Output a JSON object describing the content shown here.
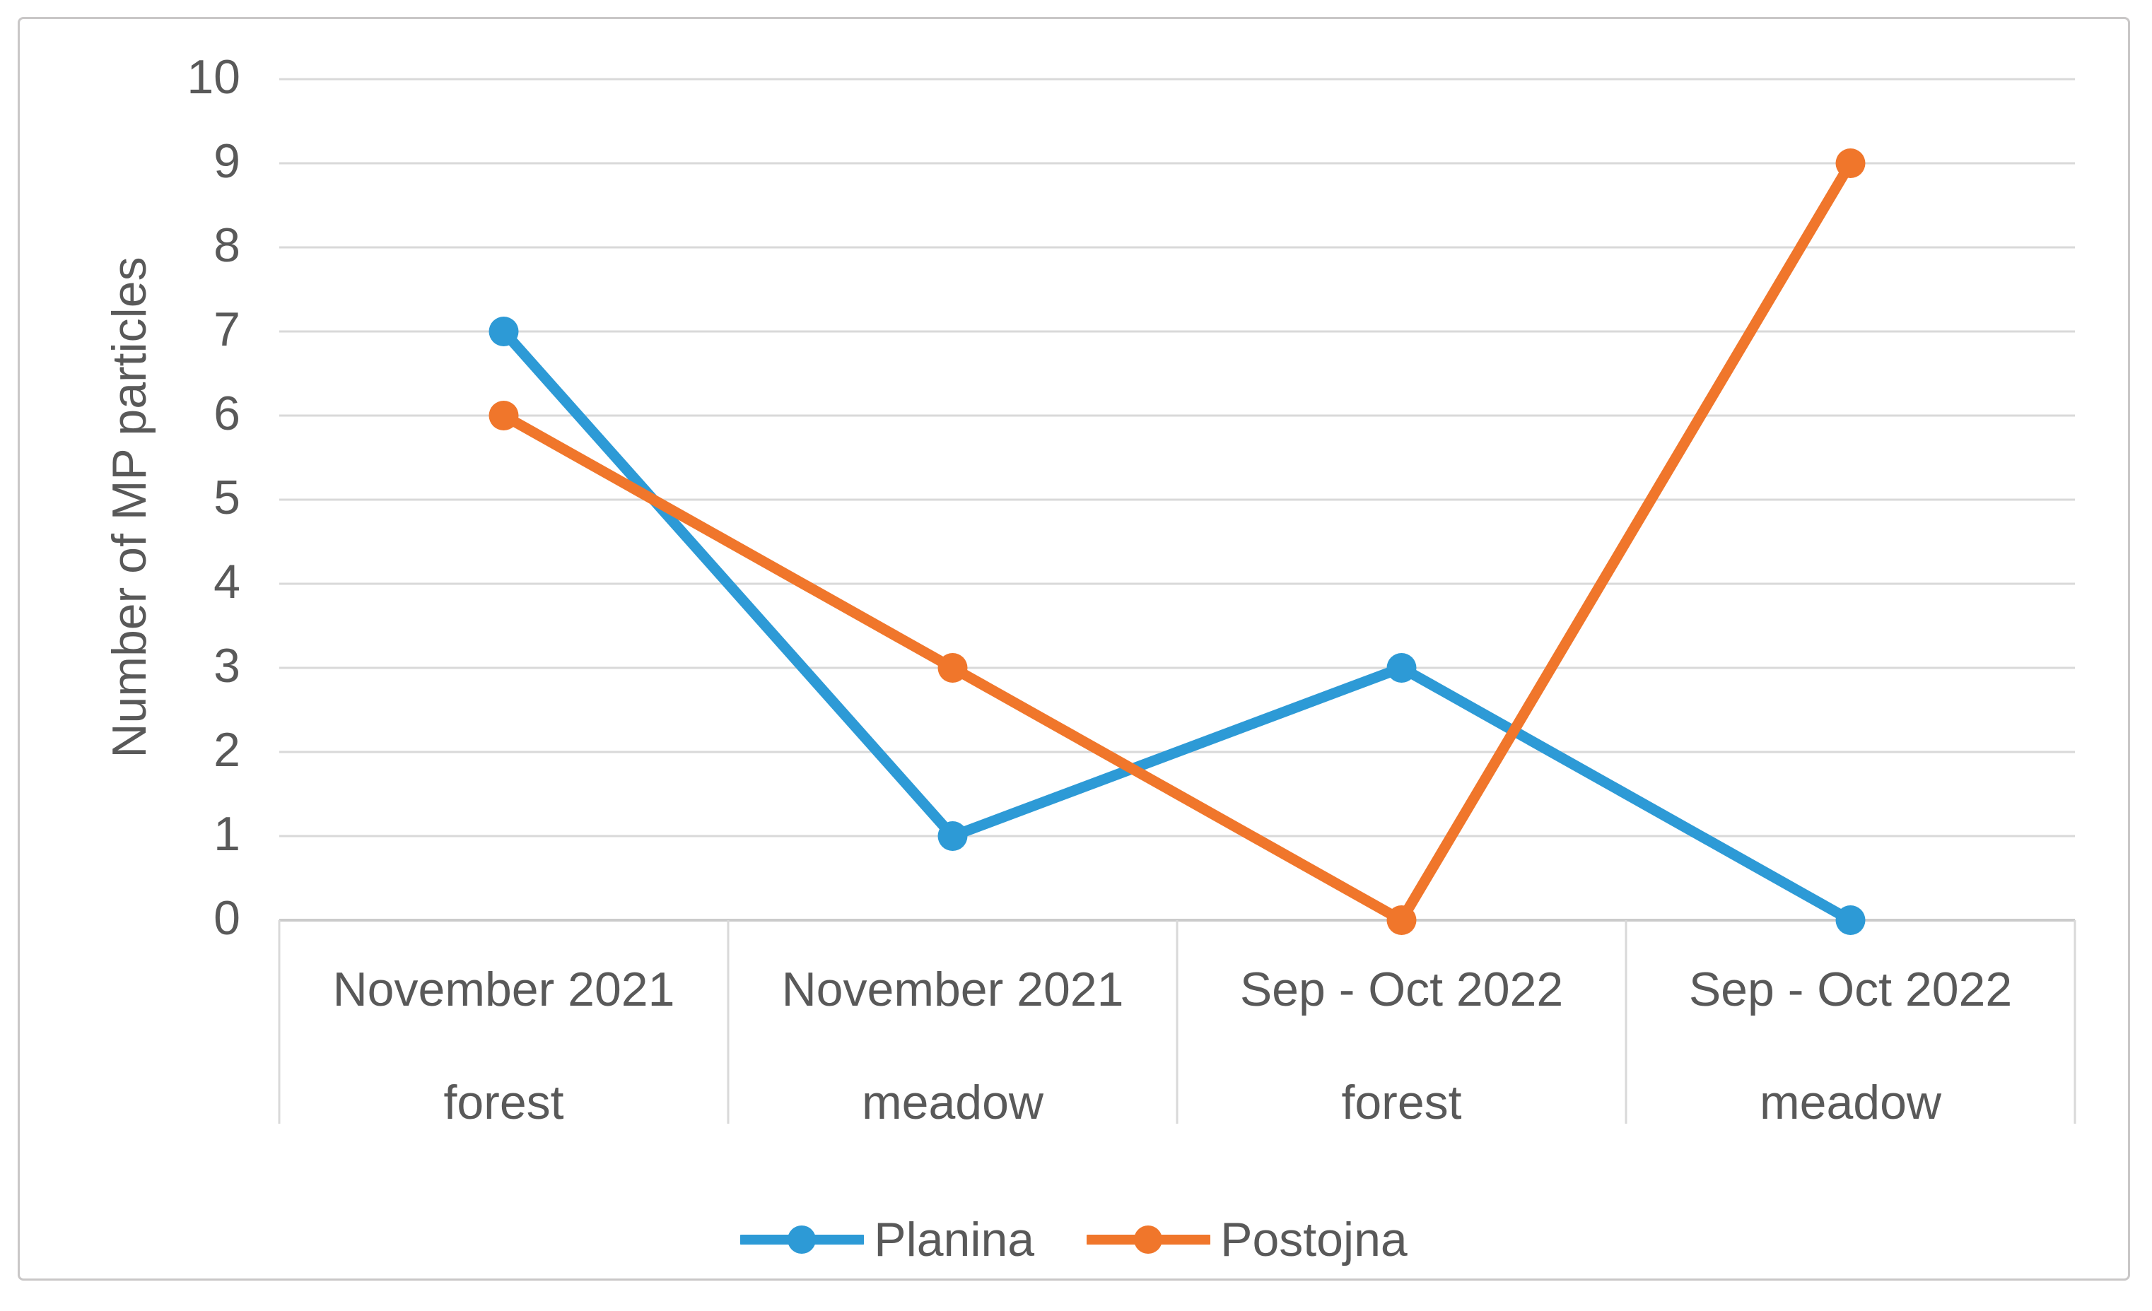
{
  "chart_data": {
    "type": "line",
    "title": "",
    "xlabel": "",
    "ylabel": "Number of MP particles",
    "ylim": [
      0,
      10
    ],
    "yticks": [
      0,
      1,
      2,
      3,
      4,
      5,
      6,
      7,
      8,
      9,
      10
    ],
    "grid": "horizontal",
    "legend_position": "bottom",
    "marker": "circle",
    "categories": [
      {
        "period": "November 2021",
        "site": "forest"
      },
      {
        "period": "November 2021",
        "site": "meadow"
      },
      {
        "period": "Sep - Oct 2022",
        "site": "forest"
      },
      {
        "period": "Sep - Oct 2022",
        "site": "meadow"
      }
    ],
    "series": [
      {
        "name": "Planina",
        "color": "#2D9AD6",
        "values": [
          7,
          1,
          3,
          0
        ]
      },
      {
        "name": "Postojna",
        "color": "#F0762B",
        "values": [
          6,
          3,
          0,
          9
        ]
      }
    ]
  },
  "colors": {
    "gridline": "#D9D9D9",
    "axis_line": "#CBCBCB",
    "divider": "#D9D9D9",
    "text": "#595959",
    "frame_border": "#C9C7C7",
    "background": "#FFFFFF"
  }
}
